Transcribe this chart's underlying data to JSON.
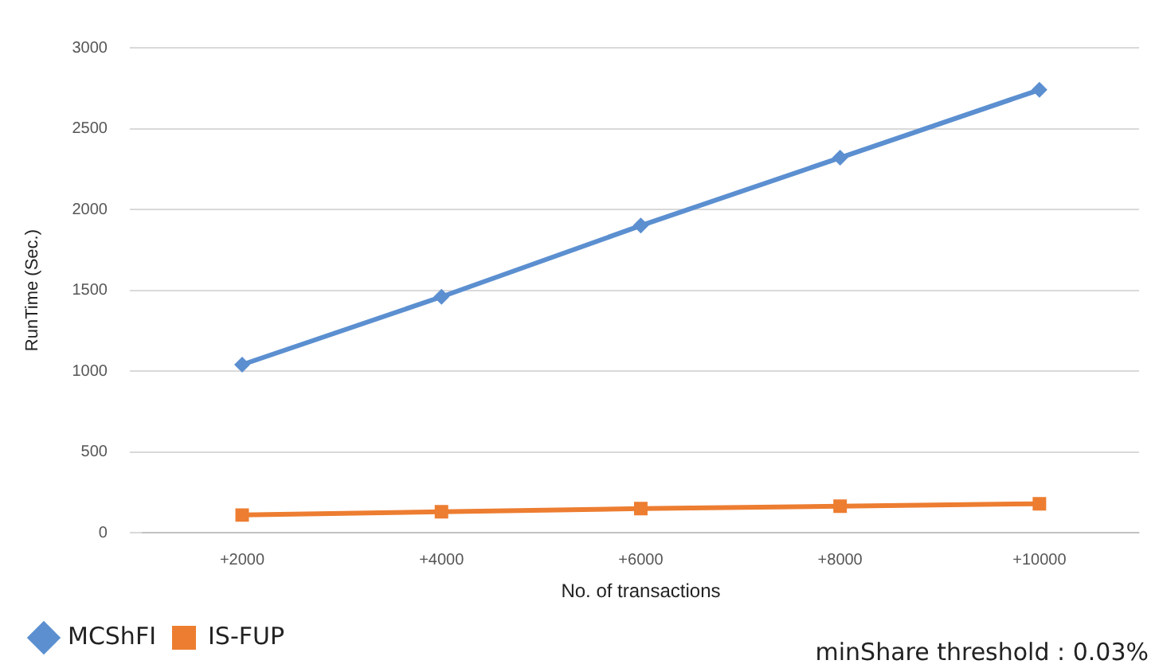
{
  "chart_data": {
    "type": "line",
    "xlabel": "No. of transactions",
    "ylabel": "RunTime (Sec.)",
    "categories": [
      "+2000",
      "+4000",
      "+6000",
      "+8000",
      "+10000"
    ],
    "series": [
      {
        "name": "MCShFI",
        "color": "#5b8fd0",
        "marker": "diamond",
        "values": [
          1040,
          1460,
          1900,
          2320,
          2740
        ]
      },
      {
        "name": "IS-FUP",
        "color": "#ed7d31",
        "marker": "square",
        "values": [
          110,
          130,
          150,
          165,
          180
        ]
      }
    ],
    "ylim": [
      0,
      3000
    ],
    "yticks": [
      0,
      500,
      1000,
      1500,
      2000,
      2500,
      3000
    ],
    "grid": "y",
    "legend": "bottom left",
    "line_style": "solid",
    "annotations": [
      "minShare threshold : 0.03%"
    ]
  }
}
